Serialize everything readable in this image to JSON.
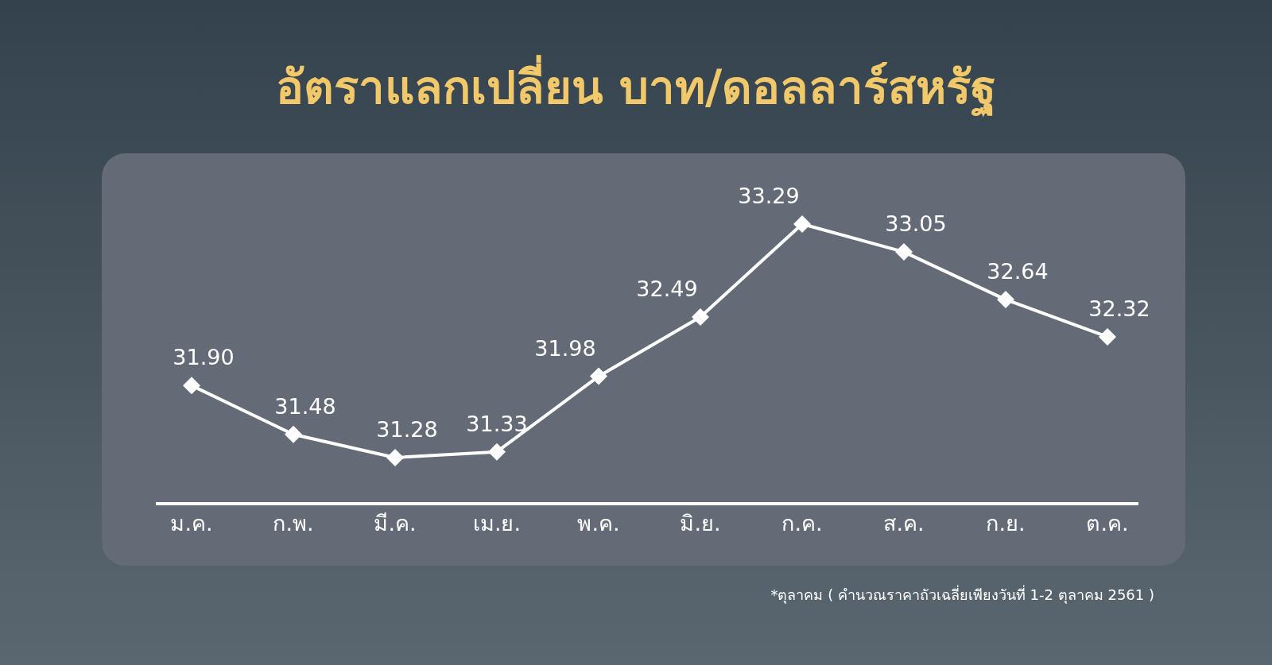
{
  "chart_data": {
    "type": "line",
    "title": "อัตราแลกเปลี่ยน บาท/ดอลลาร์สหรัฐ",
    "categories": [
      "ม.ค.",
      "ก.พ.",
      "มี.ค.",
      "เม.ย.",
      "พ.ค.",
      "มิ.ย.",
      "ก.ค.",
      "ส.ค.",
      "ก.ย.",
      "ต.ค."
    ],
    "series": [
      {
        "color": "#ffffff",
        "values": [
          31.9,
          31.48,
          31.28,
          31.33,
          31.98,
          32.49,
          33.29,
          33.05,
          32.64,
          32.32
        ],
        "value_labels": [
          "31.90",
          "31.48",
          "31.28",
          "31.33",
          "31.98",
          "32.49",
          "33.29",
          "33.05",
          "32.64",
          "32.32"
        ]
      }
    ],
    "marker": "diamond",
    "line_style": "solid",
    "annotations": [
      "*ตุลาคม ( คำนวณราคาถัวเฉลี่ยเพียงวันที่ 1-2 ตุลาคม 2561 )"
    ]
  }
}
